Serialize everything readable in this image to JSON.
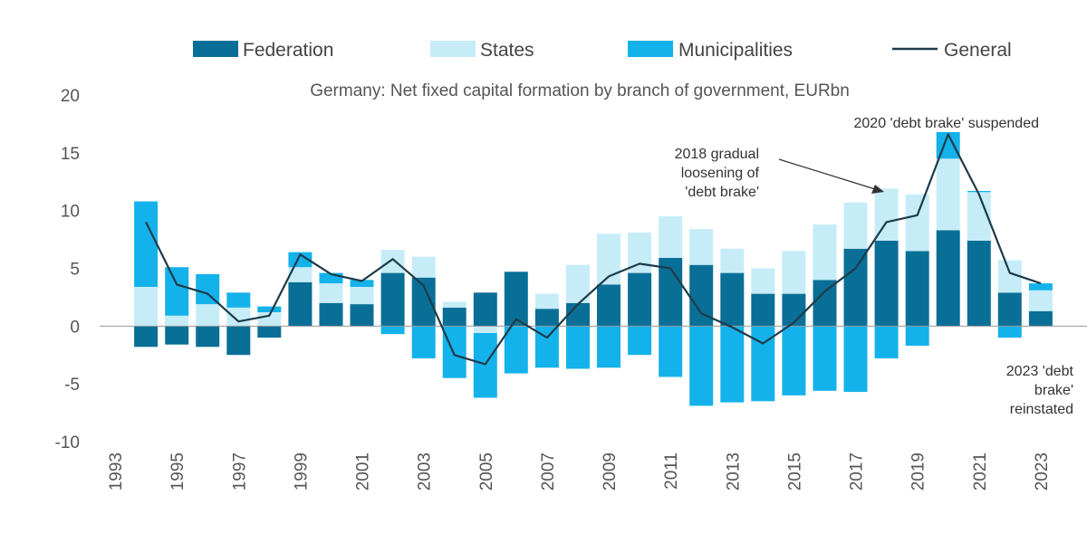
{
  "chart_data": {
    "type": "bar",
    "stacked": true,
    "title": "Germany: Net fixed capital formation by branch of government, EURbn",
    "xlabel": "",
    "ylabel": "",
    "ylim": [
      -10,
      20
    ],
    "yticks": [
      "20",
      "15",
      "10",
      "5",
      "0",
      "-5",
      "-10"
    ],
    "categories": [
      1994,
      1995,
      1996,
      1997,
      1998,
      1999,
      2000,
      2001,
      2002,
      2003,
      2004,
      2005,
      2006,
      2007,
      2008,
      2009,
      2010,
      2011,
      2012,
      2013,
      2014,
      2015,
      2016,
      2017,
      2018,
      2019,
      2020,
      2021,
      2022,
      2023
    ],
    "xtick_labels": [
      "1993",
      "1995",
      "1997",
      "1999",
      "2001",
      "2003",
      "2005",
      "2007",
      "2009",
      "2011",
      "2013",
      "2015",
      "2017",
      "2019",
      "2021",
      "2023"
    ],
    "legend": [
      "Federation",
      "States",
      "Municipalities",
      "General"
    ],
    "legend_position": "top",
    "series": [
      {
        "name": "Federation",
        "color": "#0a6f96",
        "values": [
          -1.8,
          -1.6,
          -1.8,
          -2.5,
          -1.0,
          3.8,
          2.0,
          1.9,
          4.6,
          4.2,
          1.6,
          2.9,
          4.7,
          1.5,
          2.0,
          3.6,
          4.6,
          5.9,
          5.3,
          4.6,
          2.8,
          2.8,
          4.0,
          6.7,
          7.4,
          6.5,
          8.3,
          7.4,
          2.9,
          1.3
        ]
      },
      {
        "name": "States",
        "color": "#c6ecf8",
        "values": [
          3.4,
          0.9,
          1.9,
          1.6,
          1.2,
          1.3,
          1.7,
          1.5,
          2.0,
          1.8,
          0.5,
          -0.6,
          0.0,
          1.3,
          3.3,
          4.4,
          3.5,
          3.6,
          3.1,
          2.1,
          2.2,
          3.7,
          4.8,
          4.0,
          4.5,
          4.9,
          6.2,
          4.2,
          2.8,
          1.8
        ]
      },
      {
        "name": "Municipalities",
        "color": "#14b2ea",
        "values": [
          7.4,
          4.2,
          2.6,
          1.3,
          0.5,
          1.3,
          0.9,
          0.6,
          -0.7,
          -2.8,
          -4.5,
          -5.6,
          -4.1,
          -3.6,
          -3.7,
          -3.6,
          -2.5,
          -4.4,
          -6.9,
          -6.6,
          -6.5,
          -6.0,
          -5.6,
          -5.7,
          -2.8,
          -1.7,
          2.3,
          0.1,
          -1.0,
          0.6
        ]
      },
      {
        "name": "General",
        "type": "line",
        "color": "#1d3b4a",
        "values": [
          9.0,
          3.6,
          2.8,
          0.4,
          0.9,
          6.2,
          4.5,
          3.9,
          5.8,
          3.5,
          -2.5,
          -3.3,
          0.6,
          -1.0,
          1.9,
          4.3,
          5.4,
          5.0,
          1.1,
          -0.1,
          -1.5,
          0.3,
          3.0,
          5.0,
          9.0,
          9.6,
          16.6,
          11.4,
          4.6,
          3.7
        ]
      }
    ],
    "annotations": [
      {
        "id": "a2018",
        "year": 2018,
        "lines": [
          "2018 gradual",
          "loosening of",
          "'debt brake'"
        ]
      },
      {
        "id": "a2020",
        "year": 2020,
        "lines": [
          "2020 'debt brake' suspended"
        ]
      },
      {
        "id": "a2023",
        "year": 2023,
        "lines": [
          "2023 'debt",
          "brake'",
          "reinstated"
        ]
      }
    ]
  }
}
